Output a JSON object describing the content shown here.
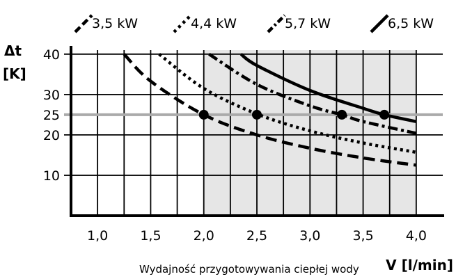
{
  "chart_data": {
    "type": "line",
    "xlabel": "V [l/min]",
    "ylabel_line1": "Δt",
    "ylabel_line2": "[K]",
    "caption": "Wydajność przygotowywania ciepłej wody",
    "xlim": [
      0.75,
      4.25
    ],
    "ylim": [
      0,
      41
    ],
    "x_tick_labels": [
      {
        "value": 1.0,
        "label": "1,0"
      },
      {
        "value": 1.5,
        "label": "1,5"
      },
      {
        "value": 2.0,
        "label": "2,0"
      },
      {
        "value": 2.5,
        "label": "2,5"
      },
      {
        "value": 3.0,
        "label": "3,0"
      },
      {
        "value": 3.5,
        "label": "3,5"
      },
      {
        "value": 4.0,
        "label": "4,0"
      }
    ],
    "y_tick_labels": [
      {
        "value": 10,
        "label": "10"
      },
      {
        "value": 20,
        "label": "20"
      },
      {
        "value": 25,
        "label": "25"
      },
      {
        "value": 30,
        "label": "30"
      },
      {
        "value": 40,
        "label": "40"
      }
    ],
    "x_gridlines": [
      1.0,
      1.25,
      1.5,
      1.75,
      2.0,
      2.25,
      2.5,
      2.75,
      3.0,
      3.25,
      3.5,
      3.75,
      4.0
    ],
    "y_gridlines": [
      10,
      20,
      30,
      40
    ],
    "shaded_region_x": [
      2.0,
      4.0
    ],
    "reference_line": {
      "y": 25,
      "color": "#aaaaaa"
    },
    "grid": true,
    "legend_position": "top",
    "series": [
      {
        "name": "3,5 kW",
        "dash": "long-dash",
        "x": [
          1.25,
          1.5,
          2.0,
          2.5,
          3.0,
          3.5,
          4.0
        ],
        "y": [
          40,
          33.3,
          25,
          20,
          16.7,
          14.3,
          12.5
        ]
      },
      {
        "name": "4,4 kW",
        "dash": "dotted",
        "x": [
          1.58,
          2.0,
          2.5,
          3.0,
          3.5,
          4.0
        ],
        "y": [
          40,
          31.5,
          25.2,
          21,
          18,
          15.7
        ]
      },
      {
        "name": "5,7 kW",
        "dash": "dash-dot",
        "x": [
          2.05,
          2.5,
          3.0,
          3.3,
          3.5,
          4.0
        ],
        "y": [
          40,
          32.5,
          27.2,
          25,
          23.3,
          20.4
        ]
      },
      {
        "name": "6,5 kW",
        "dash": "solid",
        "x": [
          2.35,
          2.5,
          3.0,
          3.5,
          3.7,
          4.0
        ],
        "y": [
          40,
          37.2,
          31,
          26.6,
          25,
          23.3
        ]
      }
    ],
    "points": [
      {
        "x": 2.0,
        "y": 25
      },
      {
        "x": 2.5,
        "y": 25
      },
      {
        "x": 3.3,
        "y": 25
      },
      {
        "x": 3.7,
        "y": 25
      }
    ]
  }
}
